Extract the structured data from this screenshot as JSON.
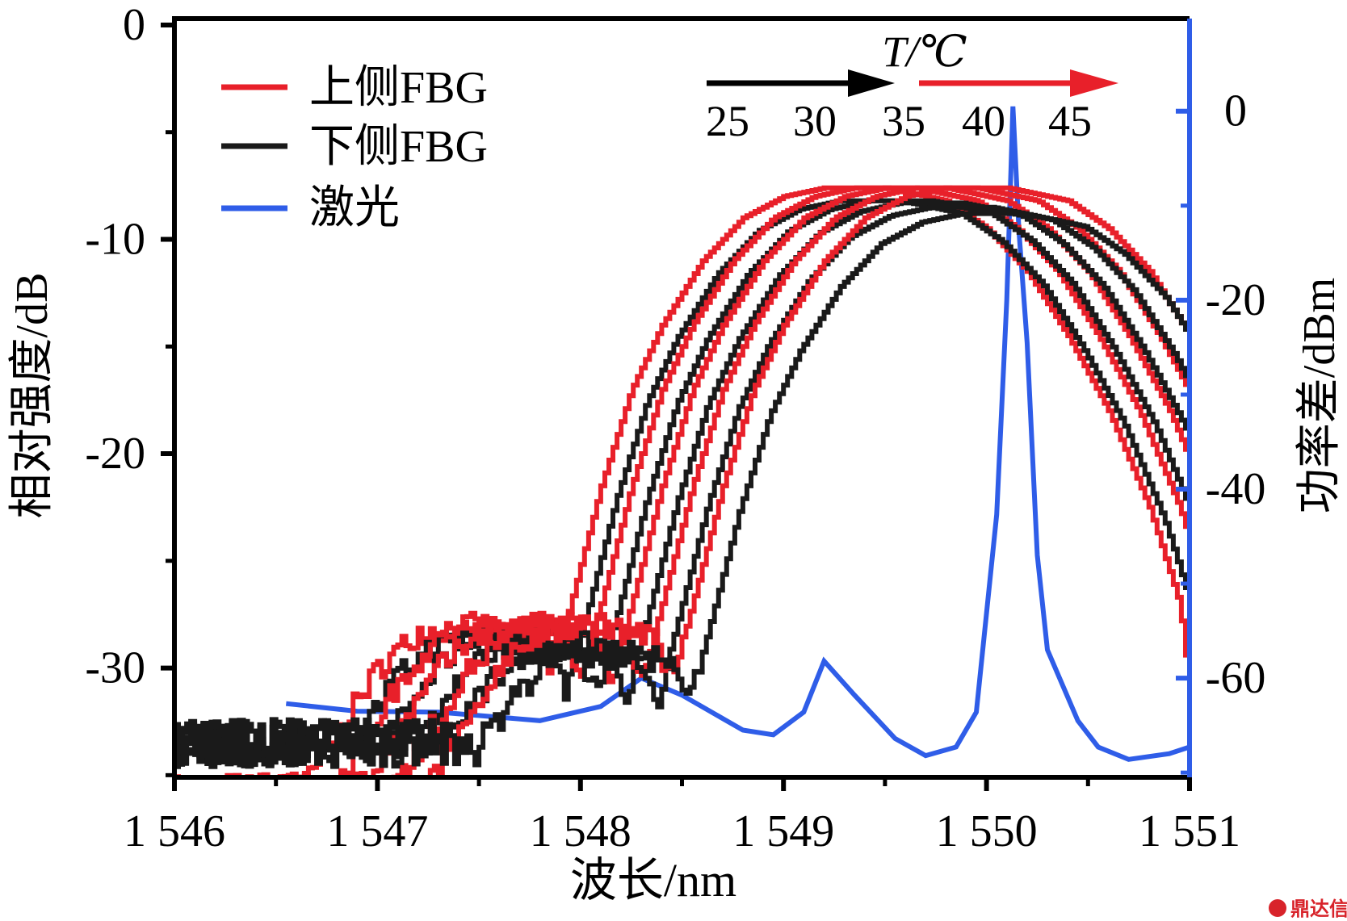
{
  "chart_data": {
    "type": "line",
    "title": "",
    "xlabel": "波长/nm",
    "ylabel": "相对强度/dB",
    "y2label": "功率差/dBm",
    "xlim": [
      1546,
      1551
    ],
    "ylim": [
      -35.1,
      0.3
    ],
    "y2lim": [
      -70.5,
      9.8
    ],
    "x_ticks": [
      1546,
      1547,
      1548,
      1549,
      1550,
      1551
    ],
    "x_tick_labels": [
      "1 546",
      "1 547",
      "1 548",
      "1 549",
      "1 550",
      "1 551"
    ],
    "y_ticks": [
      0,
      -10,
      -20,
      -30
    ],
    "y_tick_labels": [
      "0",
      "-10",
      "-20",
      "-30"
    ],
    "y2_ticks": [
      0,
      -20,
      -40,
      -60
    ],
    "y2_tick_labels": [
      "0",
      "-20",
      "-40",
      "-60"
    ],
    "legend": {
      "placement": "top-left",
      "entries": [
        {
          "label": "上侧FBG",
          "color": "#e8202a"
        },
        {
          "label": "下侧FBG",
          "color": "#1a1a1a"
        },
        {
          "label": "激光",
          "color": "#2f5de8"
        }
      ]
    },
    "annotation": {
      "label": "T/℃",
      "temperatures": [
        "25",
        "30",
        "35",
        "40",
        "45"
      ],
      "arrow_colors": [
        "#000000",
        "#e8202a"
      ]
    },
    "fbg_base_profile": {
      "x": [
        1546.0,
        1546.6,
        1546.8,
        1547.0,
        1547.2,
        1547.5,
        1547.75,
        1547.85,
        1547.95,
        1548.1,
        1548.25,
        1548.4,
        1548.6,
        1548.8,
        1549.0,
        1549.2,
        1549.5,
        1549.8,
        1550.0,
        1550.2,
        1550.4,
        1550.6,
        1550.8,
        1550.95,
        1551.0
      ],
      "y": [
        -36,
        -36,
        -33,
        -30,
        -28.3,
        -28,
        -28.6,
        -30.5,
        -27,
        -21.5,
        -17,
        -14,
        -11,
        -9,
        -8,
        -7.6,
        -7.6,
        -8.2,
        -9.5,
        -11.5,
        -14.5,
        -18,
        -22.5,
        -27,
        -31
      ]
    },
    "series": [
      {
        "name": "上侧FBG",
        "color": "#e8202a",
        "shift_nm": 0.0,
        "offset_db": 0,
        "noise_floor_db": -36
      },
      {
        "name": "下侧FBG",
        "color": "#1a1a1a",
        "shift_nm": 0.075,
        "offset_db": -0.6,
        "noise_floor_db": -33.5
      },
      {
        "name": "上侧FBG",
        "color": "#e8202a",
        "shift_nm": 0.15,
        "offset_db": 0,
        "noise_floor_db": -36
      },
      {
        "name": "下侧FBG",
        "color": "#1a1a1a",
        "shift_nm": 0.225,
        "offset_db": -0.6,
        "noise_floor_db": -33.5
      },
      {
        "name": "上侧FBG",
        "color": "#e8202a",
        "shift_nm": 0.3,
        "offset_db": 0,
        "noise_floor_db": -36
      },
      {
        "name": "下侧FBG",
        "color": "#1a1a1a",
        "shift_nm": 0.375,
        "offset_db": -0.7,
        "noise_floor_db": -33.5
      },
      {
        "name": "上侧FBG",
        "color": "#e8202a",
        "shift_nm": 0.45,
        "offset_db": 0,
        "noise_floor_db": -36
      },
      {
        "name": "下侧FBG",
        "color": "#1a1a1a",
        "shift_nm": 0.525,
        "offset_db": -0.9,
        "noise_floor_db": -33.5
      },
      {
        "name": "上侧FBG",
        "color": "#e8202a",
        "shift_nm": 0.6,
        "offset_db": 0,
        "noise_floor_db": -36
      },
      {
        "name": "下侧FBG",
        "color": "#1a1a1a",
        "shift_nm": 0.68,
        "offset_db": -1.2,
        "noise_floor_db": -33.5
      }
    ],
    "laser": {
      "name": "激光",
      "color": "#2f5de8",
      "axis": "right",
      "x": [
        1546.55,
        1546.9,
        1547.3,
        1547.8,
        1548.1,
        1548.3,
        1548.5,
        1548.8,
        1548.95,
        1549.1,
        1549.2,
        1549.35,
        1549.55,
        1549.7,
        1549.85,
        1549.95,
        1550.05,
        1550.1,
        1550.12,
        1550.13,
        1550.16,
        1550.2,
        1550.25,
        1550.3,
        1550.45,
        1550.55,
        1550.7,
        1550.9,
        1551.0
      ],
      "y": [
        -62.7,
        -63.5,
        -63.6,
        -64.5,
        -63,
        -60,
        -61.8,
        -65.5,
        -66,
        -63.6,
        -58.2,
        -61.8,
        -66.4,
        -68.2,
        -67.3,
        -63.6,
        -42.7,
        -20,
        -6.4,
        0.5,
        -12.7,
        -24.5,
        -47,
        -57,
        -64.5,
        -67.3,
        -68.6,
        -68,
        -67.3
      ]
    }
  },
  "watermark": "鼎达信"
}
